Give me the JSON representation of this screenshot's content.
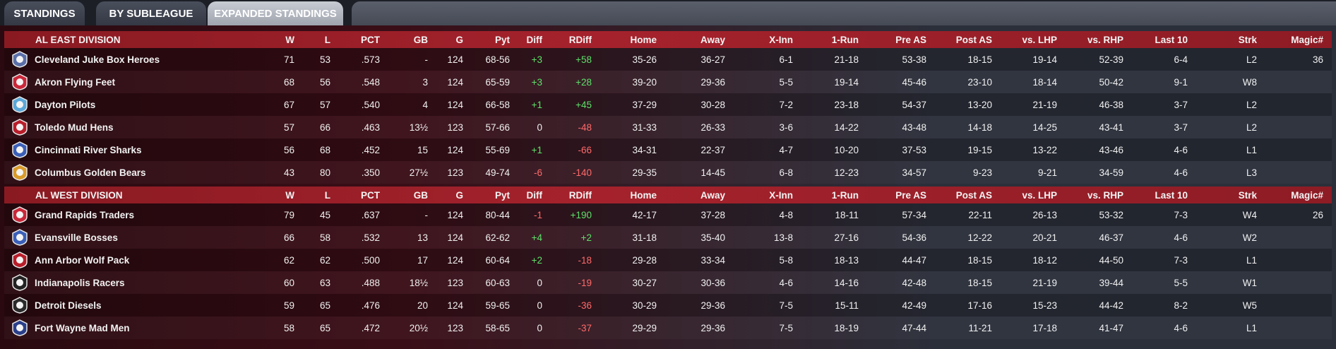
{
  "tabs": [
    {
      "label": "STANDINGS",
      "active": false
    },
    {
      "label": "BY SUBLEAGUE",
      "active": false
    },
    {
      "label": "EXPANDED STANDINGS",
      "active": true
    }
  ],
  "columns": [
    "W",
    "L",
    "PCT",
    "GB",
    "G",
    "Pyt",
    "Diff",
    "RDiff",
    "Home",
    "Away",
    "X-Inn",
    "1-Run",
    "Pre AS",
    "Post AS",
    "vs. LHP",
    "vs. RHP",
    "Last 10",
    "Strk",
    "Magic#"
  ],
  "divisions": [
    {
      "name": "AL EAST DIVISION",
      "teams": [
        {
          "name": "Cleveland Juke Box Heroes",
          "logo": "cleveland-logo-icon",
          "logo_color": "#5a6fa8",
          "W": "71",
          "L": "53",
          "PCT": ".573",
          "GB": "-",
          "G": "124",
          "Pyt": "68-56",
          "Diff": "+3",
          "RDiff": "+58",
          "Home": "35-26",
          "Away": "36-27",
          "XInn": "6-1",
          "OneRun": "21-18",
          "PreAS": "53-38",
          "PostAS": "18-15",
          "vsLHP": "19-14",
          "vsRHP": "52-39",
          "Last10": "6-4",
          "Strk": "L2",
          "Magic": "36"
        },
        {
          "name": "Akron  Flying Feet",
          "logo": "akron-logo-icon",
          "logo_color": "#c9283a",
          "W": "68",
          "L": "56",
          "PCT": ".548",
          "GB": "3",
          "G": "124",
          "Pyt": "65-59",
          "Diff": "+3",
          "RDiff": "+28",
          "Home": "39-20",
          "Away": "29-36",
          "XInn": "5-5",
          "OneRun": "19-14",
          "PreAS": "45-46",
          "PostAS": "23-10",
          "vsLHP": "18-14",
          "vsRHP": "50-42",
          "Last10": "9-1",
          "Strk": "W8",
          "Magic": ""
        },
        {
          "name": "Dayton Pilots",
          "logo": "dayton-logo-icon",
          "logo_color": "#5aa8d8",
          "W": "67",
          "L": "57",
          "PCT": ".540",
          "GB": "4",
          "G": "124",
          "Pyt": "66-58",
          "Diff": "+1",
          "RDiff": "+45",
          "Home": "37-29",
          "Away": "30-28",
          "XInn": "7-2",
          "OneRun": "23-18",
          "PreAS": "54-37",
          "PostAS": "13-20",
          "vsLHP": "21-19",
          "vsRHP": "46-38",
          "Last10": "3-7",
          "Strk": "L2",
          "Magic": ""
        },
        {
          "name": "Toledo  Mud Hens",
          "logo": "toledo-logo-icon",
          "logo_color": "#b81e2a",
          "W": "57",
          "L": "66",
          "PCT": ".463",
          "GB": "13½",
          "G": "123",
          "Pyt": "57-66",
          "Diff": "0",
          "RDiff": "-48",
          "Home": "31-33",
          "Away": "26-33",
          "XInn": "3-6",
          "OneRun": "14-22",
          "PreAS": "43-48",
          "PostAS": "14-18",
          "vsLHP": "14-25",
          "vsRHP": "43-41",
          "Last10": "3-7",
          "Strk": "L2",
          "Magic": ""
        },
        {
          "name": "Cincinnati River Sharks",
          "logo": "cincinnati-logo-icon",
          "logo_color": "#3b5fb8",
          "W": "56",
          "L": "68",
          "PCT": ".452",
          "GB": "15",
          "G": "124",
          "Pyt": "55-69",
          "Diff": "+1",
          "RDiff": "-66",
          "Home": "34-31",
          "Away": "22-37",
          "XInn": "4-7",
          "OneRun": "10-20",
          "PreAS": "37-53",
          "PostAS": "19-15",
          "vsLHP": "13-22",
          "vsRHP": "43-46",
          "Last10": "4-6",
          "Strk": "L1",
          "Magic": ""
        },
        {
          "name": "Columbus Golden Bears",
          "logo": "columbus-logo-icon",
          "logo_color": "#d89a2a",
          "W": "43",
          "L": "80",
          "PCT": ".350",
          "GB": "27½",
          "G": "123",
          "Pyt": "49-74",
          "Diff": "-6",
          "RDiff": "-140",
          "Home": "29-35",
          "Away": "14-45",
          "XInn": "6-8",
          "OneRun": "12-23",
          "PreAS": "34-57",
          "PostAS": "9-23",
          "vsLHP": "9-21",
          "vsRHP": "34-59",
          "Last10": "4-6",
          "Strk": "L3",
          "Magic": ""
        }
      ]
    },
    {
      "name": "AL WEST DIVISION",
      "teams": [
        {
          "name": "Grand Rapids Traders",
          "logo": "grand-rapids-logo-icon",
          "logo_color": "#c9283a",
          "W": "79",
          "L": "45",
          "PCT": ".637",
          "GB": "-",
          "G": "124",
          "Pyt": "80-44",
          "Diff": "-1",
          "RDiff": "+190",
          "Home": "42-17",
          "Away": "37-28",
          "XInn": "4-8",
          "OneRun": "18-11",
          "PreAS": "57-34",
          "PostAS": "22-11",
          "vsLHP": "26-13",
          "vsRHP": "53-32",
          "Last10": "7-3",
          "Strk": "W4",
          "Magic": "26"
        },
        {
          "name": "Evansville Bosses",
          "logo": "evansville-logo-icon",
          "logo_color": "#3b5fb8",
          "W": "66",
          "L": "58",
          "PCT": ".532",
          "GB": "13",
          "G": "124",
          "Pyt": "62-62",
          "Diff": "+4",
          "RDiff": "+2",
          "Home": "31-18",
          "Away": "35-40",
          "XInn": "13-8",
          "OneRun": "27-16",
          "PreAS": "54-36",
          "PostAS": "12-22",
          "vsLHP": "20-21",
          "vsRHP": "46-37",
          "Last10": "4-6",
          "Strk": "W2",
          "Magic": ""
        },
        {
          "name": "Ann Arbor Wolf Pack",
          "logo": "ann-arbor-logo-icon",
          "logo_color": "#b81e2a",
          "W": "62",
          "L": "62",
          "PCT": ".500",
          "GB": "17",
          "G": "124",
          "Pyt": "60-64",
          "Diff": "+2",
          "RDiff": "-18",
          "Home": "29-28",
          "Away": "33-34",
          "XInn": "5-8",
          "OneRun": "18-13",
          "PreAS": "44-47",
          "PostAS": "18-15",
          "vsLHP": "18-12",
          "vsRHP": "44-50",
          "Last10": "7-3",
          "Strk": "L1",
          "Magic": ""
        },
        {
          "name": "Indianapolis Racers",
          "logo": "indianapolis-logo-icon",
          "logo_color": "#222222",
          "W": "60",
          "L": "63",
          "PCT": ".488",
          "GB": "18½",
          "G": "123",
          "Pyt": "60-63",
          "Diff": "0",
          "RDiff": "-19",
          "Home": "30-27",
          "Away": "30-36",
          "XInn": "4-6",
          "OneRun": "14-16",
          "PreAS": "42-48",
          "PostAS": "18-15",
          "vsLHP": "21-19",
          "vsRHP": "39-44",
          "Last10": "5-5",
          "Strk": "W1",
          "Magic": ""
        },
        {
          "name": "Detroit Diesels",
          "logo": "detroit-logo-icon",
          "logo_color": "#2a2a2a",
          "W": "59",
          "L": "65",
          "PCT": ".476",
          "GB": "20",
          "G": "124",
          "Pyt": "59-65",
          "Diff": "0",
          "RDiff": "-36",
          "Home": "30-29",
          "Away": "29-36",
          "XInn": "7-5",
          "OneRun": "15-11",
          "PreAS": "42-49",
          "PostAS": "17-16",
          "vsLHP": "15-23",
          "vsRHP": "44-42",
          "Last10": "8-2",
          "Strk": "W5",
          "Magic": ""
        },
        {
          "name": "Fort Wayne Mad Men",
          "logo": "fort-wayne-logo-icon",
          "logo_color": "#2a3f8a",
          "W": "58",
          "L": "65",
          "PCT": ".472",
          "GB": "20½",
          "G": "123",
          "Pyt": "58-65",
          "Diff": "0",
          "RDiff": "-37",
          "Home": "29-29",
          "Away": "29-36",
          "XInn": "7-5",
          "OneRun": "18-19",
          "PreAS": "47-44",
          "PostAS": "11-21",
          "vsLHP": "17-18",
          "vsRHP": "41-47",
          "Last10": "4-6",
          "Strk": "L1",
          "Magic": ""
        }
      ]
    }
  ]
}
